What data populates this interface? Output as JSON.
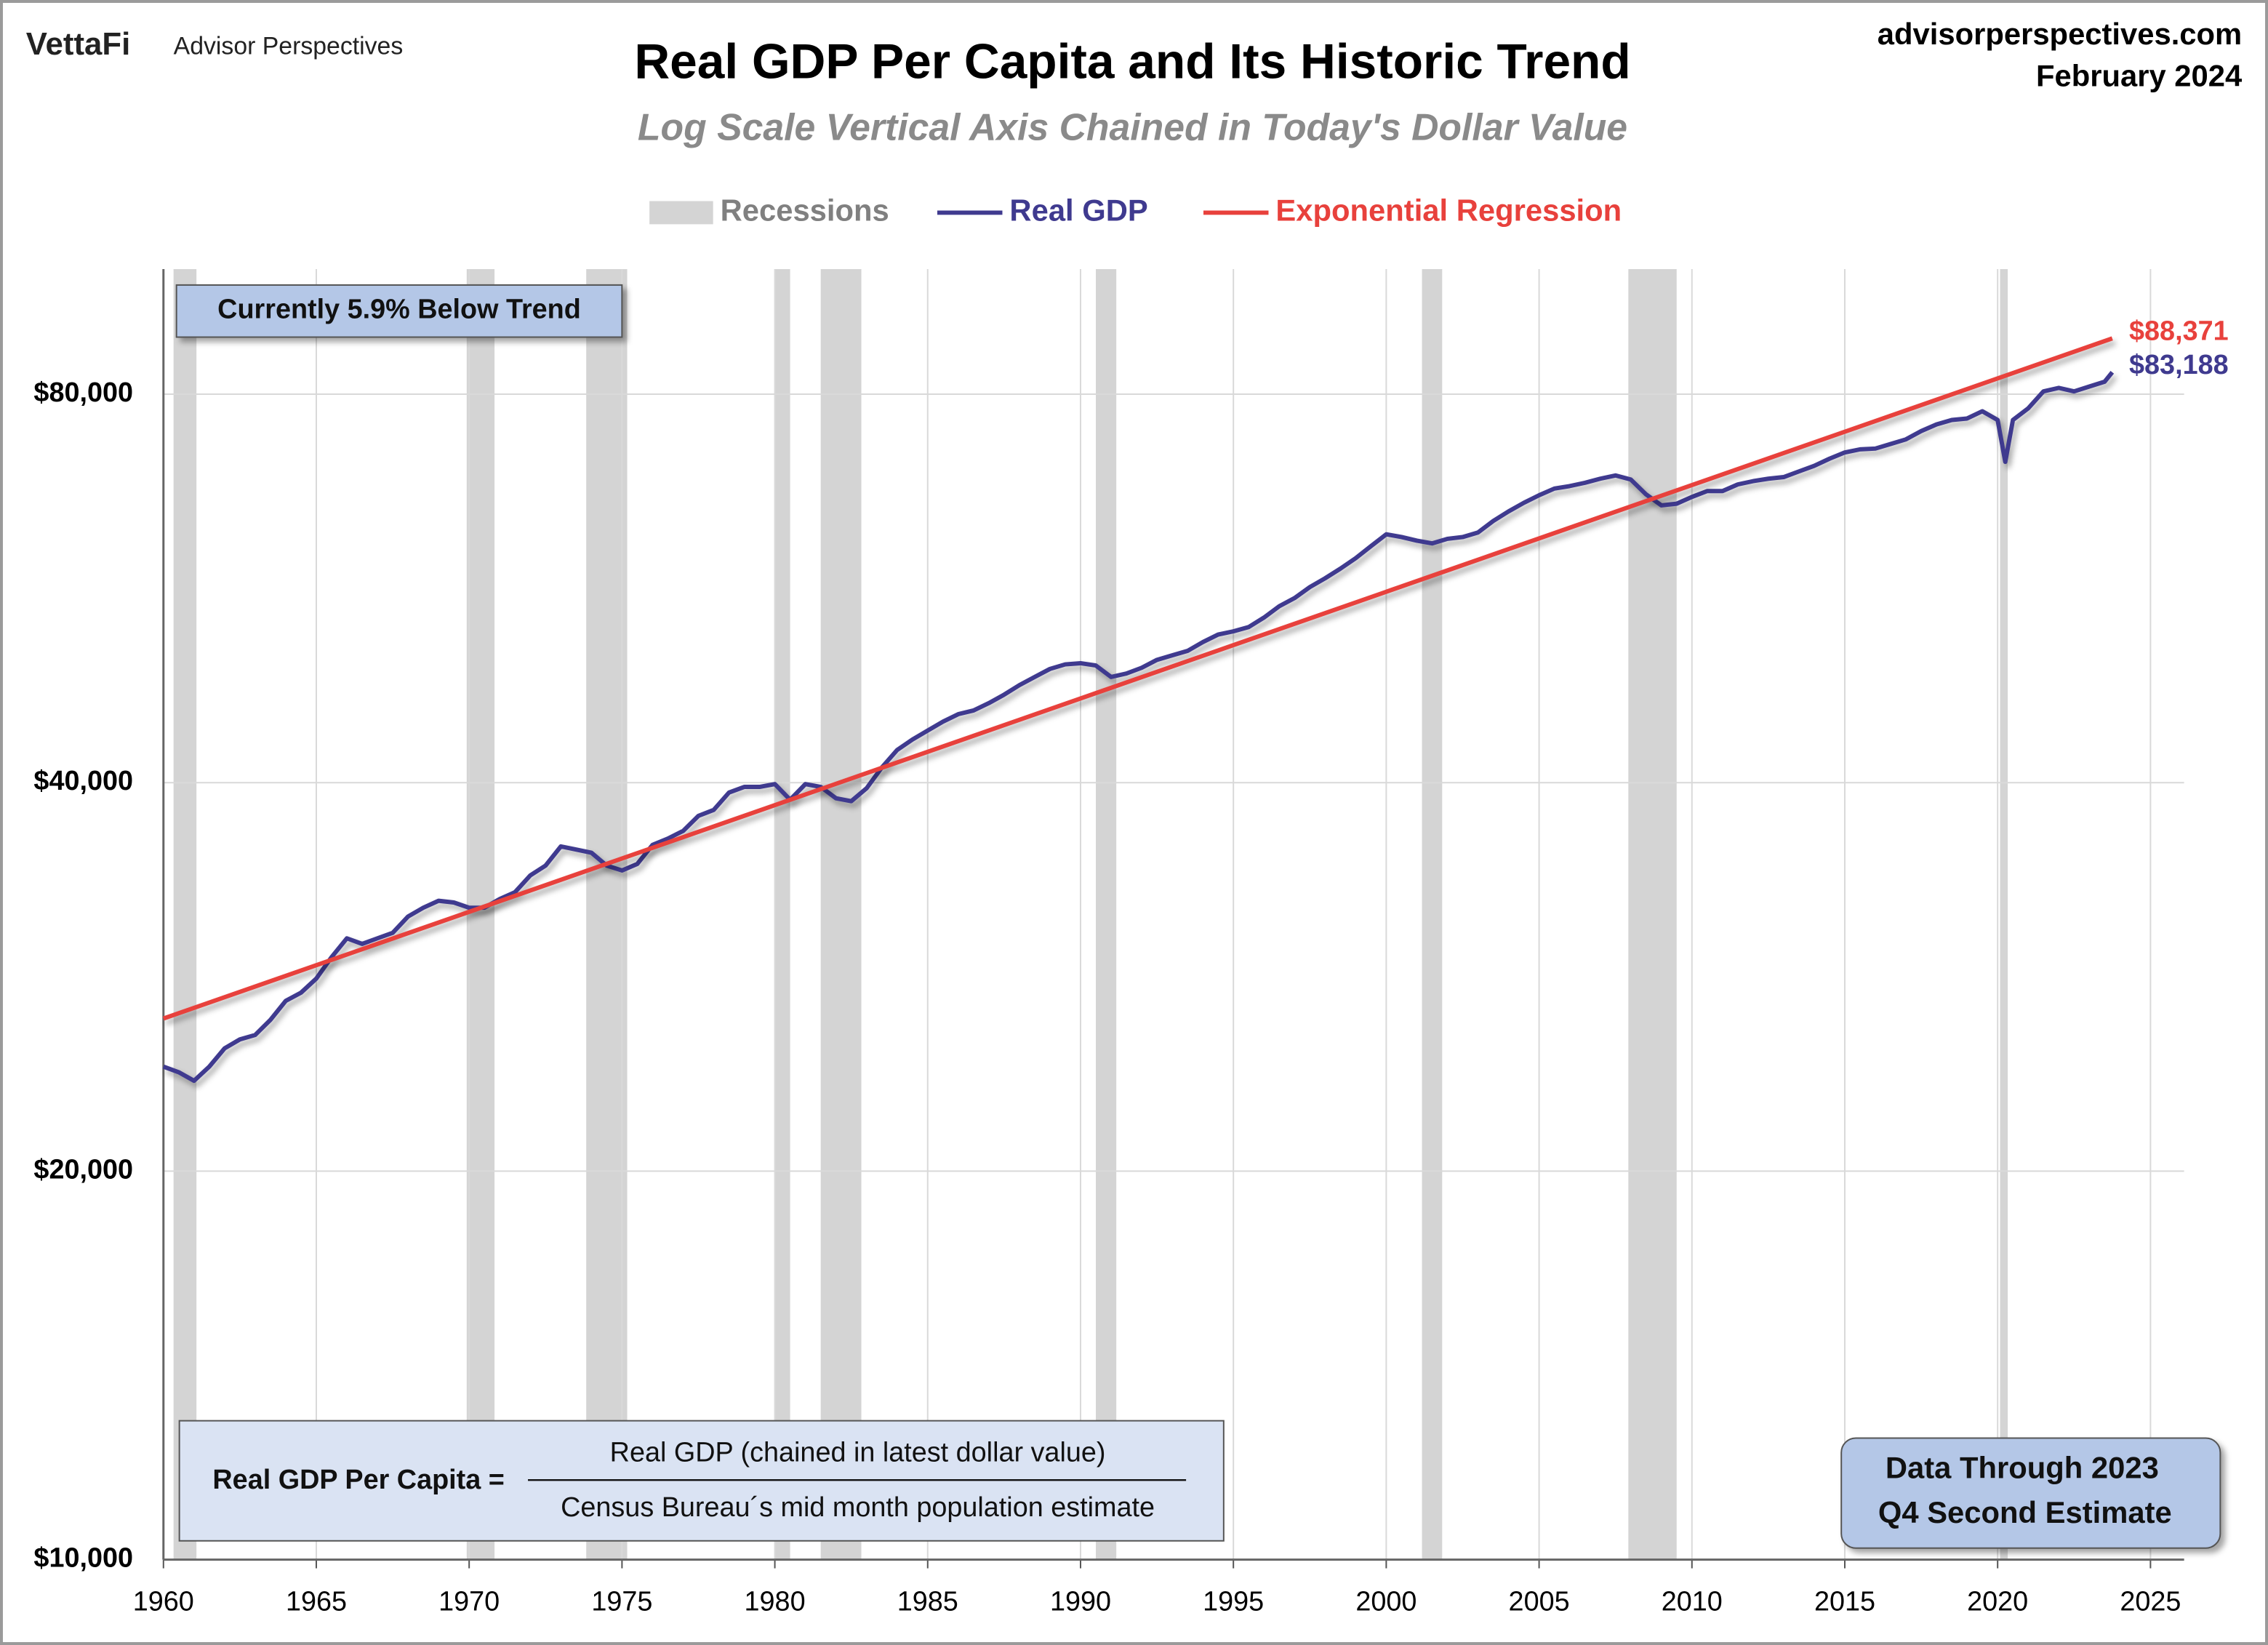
{
  "chart_data": {
    "type": "line",
    "brand": "VettaFi",
    "publisher": "Advisor Perspectives",
    "website": "advisorperspectives.com",
    "date": "February 2024",
    "title": "Real GDP Per Capita and Its Historic Trend",
    "subtitle": "Log Scale Vertical Axis Chained in Today's Dollar Value",
    "annotation": "Currently 5.9% Below Trend",
    "formula": {
      "lhs": "Real GDP Per Capita =",
      "numerator": "Real GDP (chained in latest dollar value)",
      "denominator": "Census Bureau´s mid month population estimate"
    },
    "data_note": [
      "Data Through 2023",
      "Q4 Second Estimate"
    ],
    "yscale": "log",
    "grid": true,
    "xlim": [
      1960,
      2026.1
    ],
    "xticks": [
      1960,
      1965,
      1970,
      1975,
      1980,
      1985,
      1990,
      1995,
      2000,
      2005,
      2010,
      2015,
      2020,
      2025
    ],
    "ylim": [
      10000,
      100000
    ],
    "yticks": [
      {
        "value": 10000,
        "label": "$10,000"
      },
      {
        "value": 20000,
        "label": "$20,000"
      },
      {
        "value": 40000,
        "label": "$40,000"
      },
      {
        "value": 80000,
        "label": "$80,000"
      }
    ],
    "recessions": {
      "label": "Recessions",
      "color": "#d4d4d4",
      "periods": [
        [
          1960.33,
          1961.08
        ],
        [
          1969.92,
          1970.83
        ],
        [
          1973.83,
          1975.17
        ],
        [
          1980.0,
          1980.5
        ],
        [
          1981.5,
          1982.83
        ],
        [
          1990.5,
          1991.17
        ],
        [
          2001.17,
          2001.83
        ],
        [
          2007.92,
          2009.5
        ],
        [
          2020.08,
          2020.33
        ]
      ]
    },
    "series": [
      {
        "name": "Real GDP",
        "color": "#3f3a8f",
        "end_label": "$83,188",
        "x": [
          1960,
          1960.5,
          1961,
          1961.5,
          1962,
          1962.5,
          1963,
          1963.5,
          1964,
          1964.5,
          1965,
          1965.5,
          1966,
          1966.5,
          1967,
          1967.5,
          1968,
          1968.5,
          1969,
          1969.5,
          1970,
          1970.5,
          1971,
          1971.5,
          1972,
          1972.5,
          1973,
          1973.5,
          1974,
          1974.5,
          1975,
          1975.5,
          1976,
          1976.5,
          1977,
          1977.5,
          1978,
          1978.5,
          1979,
          1979.5,
          1980,
          1980.5,
          1981,
          1981.5,
          1982,
          1982.5,
          1983,
          1983.5,
          1984,
          1984.5,
          1985,
          1985.5,
          1986,
          1986.5,
          1987,
          1987.5,
          1988,
          1988.5,
          1989,
          1989.5,
          1990,
          1990.5,
          1991,
          1991.5,
          1992,
          1992.5,
          1993,
          1993.5,
          1994,
          1994.5,
          1995,
          1995.5,
          1996,
          1996.5,
          1997,
          1997.5,
          1998,
          1998.5,
          1999,
          1999.5,
          2000,
          2000.5,
          2001,
          2001.5,
          2002,
          2002.5,
          2003,
          2003.5,
          2004,
          2004.5,
          2005,
          2005.5,
          2006,
          2006.5,
          2007,
          2007.5,
          2008,
          2008.5,
          2009,
          2009.5,
          2010,
          2010.5,
          2011,
          2011.5,
          2012,
          2012.5,
          2013,
          2013.5,
          2014,
          2014.5,
          2015,
          2015.5,
          2016,
          2016.5,
          2017,
          2017.5,
          2018,
          2018.5,
          2019,
          2019.5,
          2020,
          2020.25,
          2020.5,
          2021,
          2021.5,
          2022,
          2022.5,
          2023,
          2023.5,
          2023.75
        ],
        "values": [
          24100,
          23860,
          23500,
          24100,
          24900,
          25300,
          25500,
          26200,
          27100,
          27500,
          28200,
          29300,
          30300,
          30000,
          30300,
          30600,
          31500,
          32000,
          32400,
          32300,
          32000,
          32000,
          32500,
          32900,
          33900,
          34500,
          35700,
          35500,
          35300,
          34500,
          34200,
          34600,
          35800,
          36200,
          36700,
          37700,
          38100,
          39300,
          39700,
          39700,
          39900,
          38800,
          39900,
          39700,
          38900,
          38700,
          39600,
          41100,
          42400,
          43200,
          43900,
          44600,
          45200,
          45500,
          46100,
          46800,
          47600,
          48300,
          49000,
          49400,
          49500,
          49300,
          48300,
          48600,
          49100,
          49800,
          50200,
          50600,
          51400,
          52100,
          52400,
          52800,
          53700,
          54800,
          55600,
          56700,
          57600,
          58600,
          59700,
          61000,
          62300,
          62000,
          61600,
          61300,
          61800,
          62000,
          62500,
          63800,
          64900,
          65900,
          66800,
          67600,
          67900,
          68300,
          68800,
          69200,
          68700,
          66900,
          65600,
          65800,
          66600,
          67300,
          67300,
          68100,
          68500,
          68800,
          69000,
          69700,
          70400,
          71300,
          72100,
          72500,
          72600,
          73200,
          73800,
          74900,
          75800,
          76400,
          76600,
          77600,
          76400,
          70900,
          76400,
          78000,
          80400,
          80900,
          80400,
          81100,
          81800,
          83188
        ]
      },
      {
        "name": "Exponential Regression",
        "color": "#e8413c",
        "end_label": "$88,371",
        "x": [
          1960,
          2023.75
        ],
        "values": [
          26260,
          88371
        ]
      }
    ]
  }
}
